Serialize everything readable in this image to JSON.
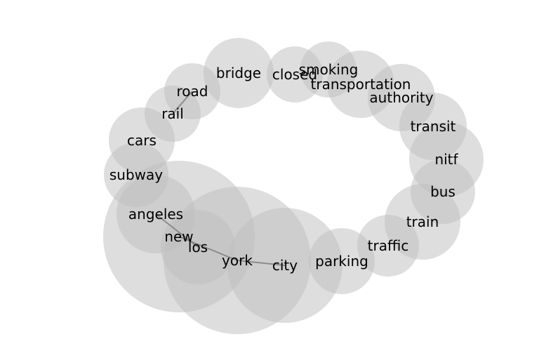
{
  "colors": {
    "bubble": "#bdbdbd",
    "edge": "#808080",
    "text": "#000000",
    "background": "#ffffff"
  },
  "nodes": [
    {
      "id": "bridge",
      "label": "bridge"
    },
    {
      "id": "closed",
      "label": "closed"
    },
    {
      "id": "smoking",
      "label": "smoking"
    },
    {
      "id": "transportation",
      "label": "transportation"
    },
    {
      "id": "authority",
      "label": "authority"
    },
    {
      "id": "transit",
      "label": "transit"
    },
    {
      "id": "nitf",
      "label": "nitf"
    },
    {
      "id": "bus",
      "label": "bus"
    },
    {
      "id": "train",
      "label": "train"
    },
    {
      "id": "traffic",
      "label": "traffic"
    },
    {
      "id": "parking",
      "label": "parking"
    },
    {
      "id": "city",
      "label": "city"
    },
    {
      "id": "york",
      "label": "york"
    },
    {
      "id": "los",
      "label": "los"
    },
    {
      "id": "new",
      "label": "new"
    },
    {
      "id": "angeles",
      "label": "angeles"
    },
    {
      "id": "subway",
      "label": "subway"
    },
    {
      "id": "cars",
      "label": "cars"
    },
    {
      "id": "rail",
      "label": "rail"
    },
    {
      "id": "road",
      "label": "road"
    }
  ],
  "edges": [
    [
      "new",
      "york"
    ],
    [
      "york",
      "city"
    ],
    [
      "los",
      "angeles"
    ],
    [
      "rail",
      "road"
    ]
  ]
}
